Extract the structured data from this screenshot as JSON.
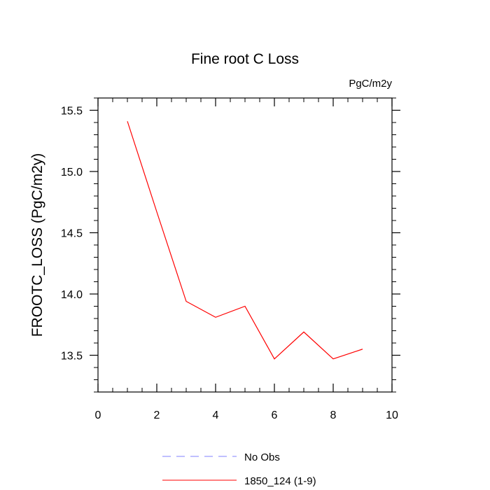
{
  "chart_data": {
    "type": "line",
    "title": "Fine root C Loss",
    "units_label": "PgC/m2y",
    "xlabel": "",
    "ylabel": "FROOTC_LOSS  (PgC/m2y)",
    "xlim": [
      0,
      10
    ],
    "ylim": [
      13.2,
      15.6
    ],
    "x_ticks": [
      0,
      2,
      4,
      6,
      8,
      10
    ],
    "x_tick_labels": [
      "0",
      "2",
      "4",
      "6",
      "8",
      "10"
    ],
    "y_ticks": [
      13.5,
      14.0,
      14.5,
      15.0,
      15.5
    ],
    "y_tick_labels": [
      "13.5",
      "14.0",
      "14.5",
      "15.0",
      "15.5"
    ],
    "grid": false,
    "legend_position": "bottom",
    "series": [
      {
        "name": "No Obs",
        "color": "#8080ff",
        "dashed": true,
        "x": [],
        "y": []
      },
      {
        "name": "1850_124 (1-9)",
        "color": "#ff0000",
        "dashed": false,
        "x": [
          1,
          2,
          3,
          4,
          5,
          6,
          7,
          8,
          9
        ],
        "y": [
          15.41,
          14.67,
          13.94,
          13.81,
          13.9,
          13.47,
          13.69,
          13.47,
          13.55
        ]
      }
    ]
  }
}
